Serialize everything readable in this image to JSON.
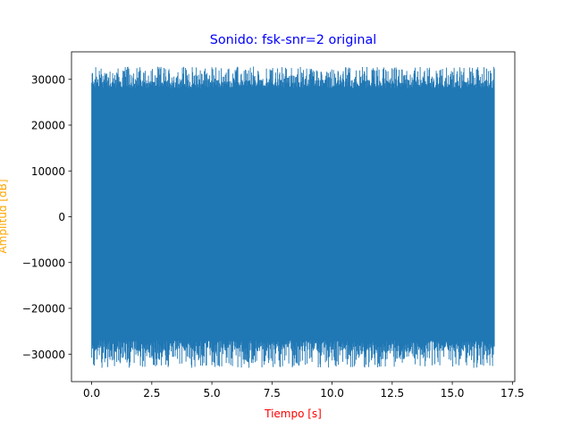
{
  "chart_data": {
    "type": "line",
    "title": "Sonido: fsk-snr=2 original",
    "xlabel": "Tiempo [s]",
    "ylabel": "Amplitud [dB]",
    "xlim": [
      -0.84,
      17.6
    ],
    "ylim": [
      -36000,
      36000
    ],
    "x_ticks": [
      0.0,
      2.5,
      5.0,
      7.5,
      10.0,
      12.5,
      15.0,
      17.5
    ],
    "x_tick_labels": [
      "0.0",
      "2.5",
      "5.0",
      "7.5",
      "10.0",
      "12.5",
      "15.0",
      "17.5"
    ],
    "y_ticks": [
      -30000,
      -20000,
      -10000,
      0,
      10000,
      20000,
      30000
    ],
    "y_tick_labels": [
      "−30000",
      "−20000",
      "−10000",
      "0",
      "10000",
      "20000",
      "30000"
    ],
    "grid": false,
    "series": [
      {
        "color": "#1f77b4",
        "x_range": [
          0.0,
          16.75
        ],
        "typical_range": [
          -27000,
          28000
        ],
        "peak_range": [
          -33000,
          32800
        ]
      }
    ],
    "colors": {
      "series": "#1f77b4",
      "title": "#0000ff",
      "xlabel": "#ff0000",
      "ylabel": "#ffa500"
    }
  }
}
